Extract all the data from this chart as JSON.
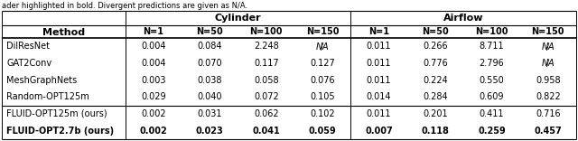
{
  "caption": "ader highlighted in bold. Divergent predictions are given as N/A.",
  "col_groups": [
    {
      "label": "Cylinder",
      "span": 4
    },
    {
      "label": "Airflow",
      "span": 4
    }
  ],
  "sub_headers": [
    "N=1",
    "N=50",
    "N=100",
    "N=150",
    "N=1",
    "N=50",
    "N=100",
    "N=150"
  ],
  "method_col": "Method",
  "rows": [
    {
      "method": "DilResNet",
      "bold": false,
      "vals": [
        "0.004",
        "0.084",
        "2.248",
        "N/A",
        "0.011",
        "0.266",
        "8.711",
        "N/A"
      ]
    },
    {
      "method": "GAT2Conv",
      "bold": false,
      "vals": [
        "0.004",
        "0.070",
        "0.117",
        "0.127",
        "0.011",
        "0.776",
        "2.796",
        "N/A"
      ]
    },
    {
      "method": "MeshGraphNets",
      "bold": false,
      "vals": [
        "0.003",
        "0.038",
        "0.058",
        "0.076",
        "0.011",
        "0.224",
        "0.550",
        "0.958"
      ]
    },
    {
      "method": "Random-OPT125m",
      "bold": false,
      "vals": [
        "0.029",
        "0.040",
        "0.072",
        "0.105",
        "0.014",
        "0.284",
        "0.609",
        "0.822"
      ]
    },
    {
      "method": "FLUID-OPT125m (ours)",
      "bold": false,
      "vals": [
        "0.002",
        "0.031",
        "0.062",
        "0.102",
        "0.011",
        "0.201",
        "0.411",
        "0.716"
      ]
    },
    {
      "method": "FLUID-OPT2.7b (ours)",
      "bold": true,
      "vals": [
        "0.002",
        "0.023",
        "0.041",
        "0.059",
        "0.007",
        "0.118",
        "0.259",
        "0.457"
      ]
    }
  ],
  "separator_after_row": 3,
  "figsize": [
    6.4,
    1.56
  ],
  "dpi": 100,
  "font_size": 7.0,
  "header_font_size": 8.0
}
